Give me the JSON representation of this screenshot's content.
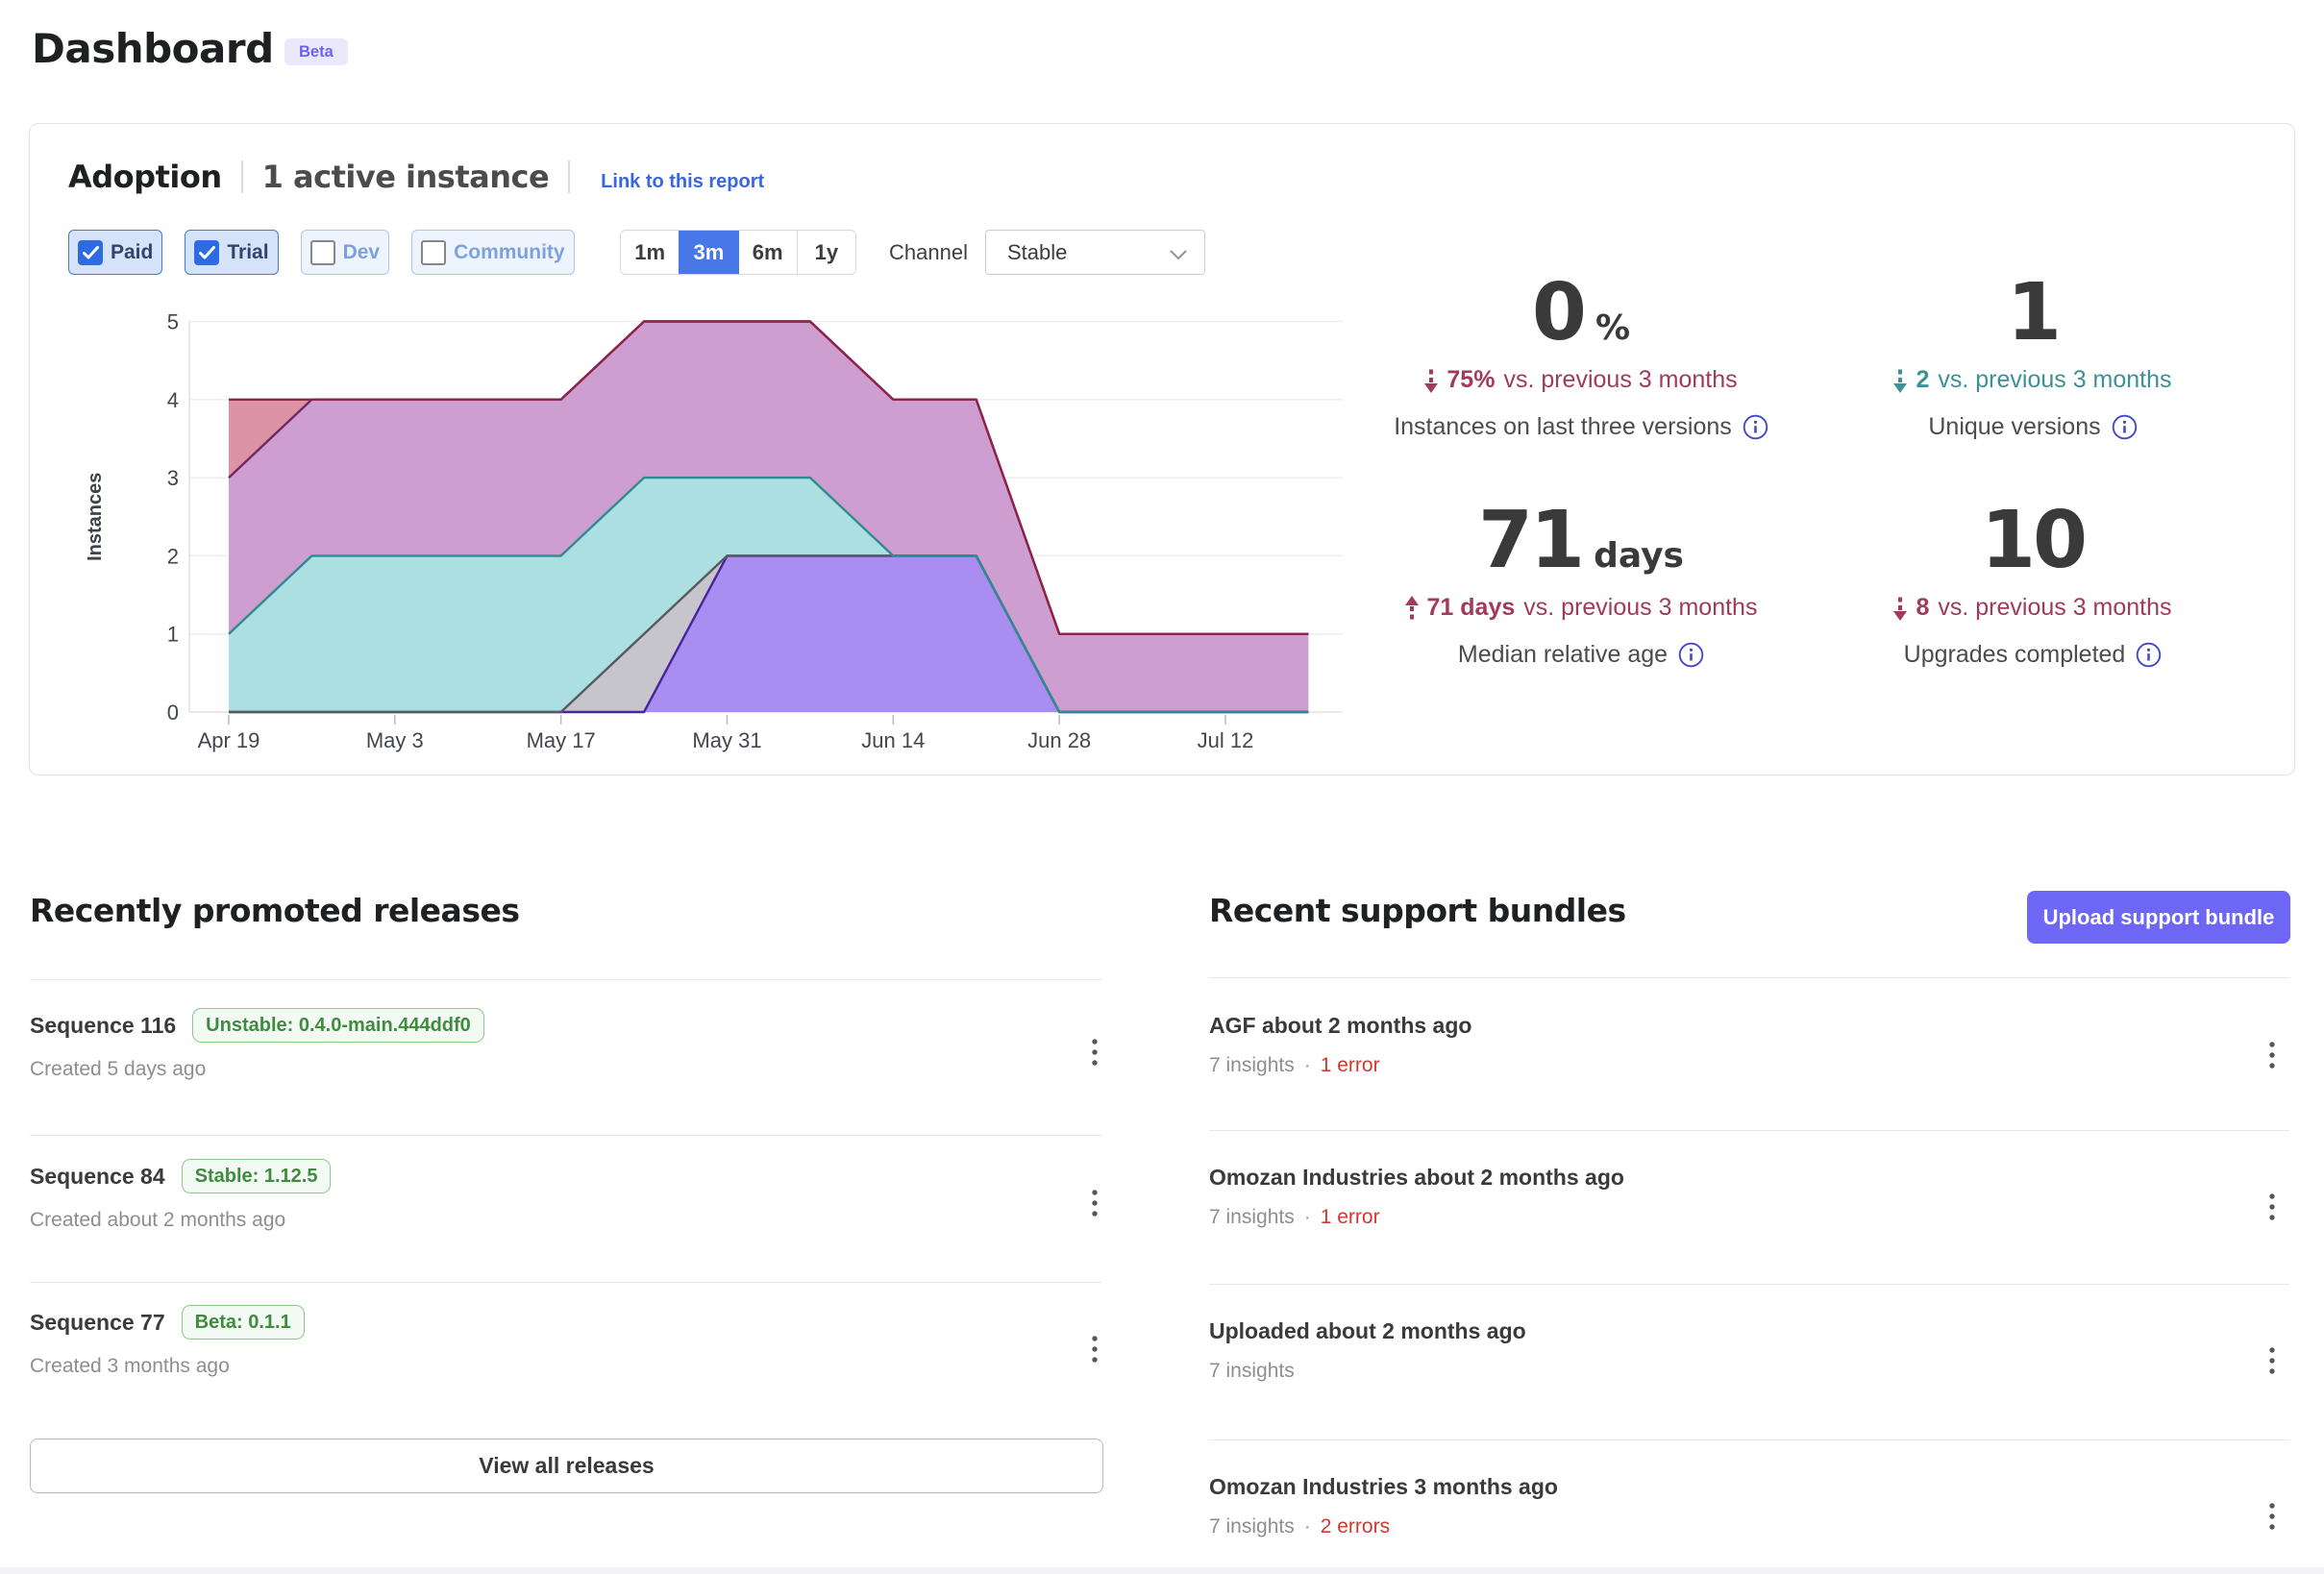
{
  "page": {
    "title": "Dashboard",
    "badge": "Beta"
  },
  "adoption": {
    "title": "Adoption",
    "active_instances": "1 active instance",
    "report_link": "Link to this report",
    "filters": [
      {
        "label": "Paid",
        "checked": true
      },
      {
        "label": "Trial",
        "checked": true
      },
      {
        "label": "Dev",
        "checked": false
      },
      {
        "label": "Community",
        "checked": false
      }
    ],
    "ranges": [
      {
        "label": "1m",
        "active": false
      },
      {
        "label": "3m",
        "active": true
      },
      {
        "label": "6m",
        "active": false
      },
      {
        "label": "1y",
        "active": false
      }
    ],
    "channel_label": "Channel",
    "channel_value": "Stable",
    "metrics": [
      {
        "value": "0",
        "unit": "%",
        "direction": "down",
        "delta_bold": "75%",
        "delta_rest": "vs. previous 3 months",
        "trend_color": "#a23a59",
        "label": "Instances on last three versions"
      },
      {
        "value": "1",
        "unit": "",
        "direction": "down",
        "delta_bold": "2",
        "delta_rest": "vs. previous 3 months",
        "trend_color": "#3b9295",
        "label": "Unique versions"
      },
      {
        "value": "71",
        "unit": "days",
        "direction": "up",
        "delta_bold": "71 days",
        "delta_rest": "vs. previous 3 months",
        "trend_color": "#a23a59",
        "label": "Median relative age"
      },
      {
        "value": "10",
        "unit": "",
        "direction": "down",
        "delta_bold": "8",
        "delta_rest": "vs. previous 3 months",
        "trend_color": "#a23a59",
        "label": "Upgrades completed"
      }
    ]
  },
  "chart_data": {
    "type": "area",
    "stacked": true,
    "title": "Adoption",
    "ylabel": "Instances",
    "ylim": [
      0,
      5
    ],
    "y_ticks": [
      0,
      1,
      2,
      3,
      4,
      5
    ],
    "grid": true,
    "legend_position": "none",
    "points": [
      "Apr 19",
      "Apr 26",
      "May 3",
      "May 10",
      "May 17",
      "May 24",
      "May 31",
      "Jun 7",
      "Jun 14",
      "Jun 21",
      "Jun 28",
      "Jul 5",
      "Jul 12",
      "Jul 19"
    ],
    "day_offsets": [
      0,
      7,
      14,
      21,
      28,
      35,
      42,
      49,
      56,
      63,
      70,
      77,
      84,
      91
    ],
    "x_ticks": [
      {
        "label": "Apr 19",
        "day": 0
      },
      {
        "label": "May 3",
        "day": 14
      },
      {
        "label": "May 17",
        "day": 28
      },
      {
        "label": "May 31",
        "day": 42
      },
      {
        "label": "Jun 14",
        "day": 56
      },
      {
        "label": "Jun 28",
        "day": 70
      },
      {
        "label": "Jul 12",
        "day": 84
      }
    ],
    "series": [
      {
        "name": "purple-version",
        "fill": "#a98df0",
        "stroke": "#47269b",
        "values": [
          0,
          0,
          0,
          0,
          0,
          0,
          2,
          2,
          2,
          2,
          0,
          0,
          0,
          0
        ]
      },
      {
        "name": "gray-version",
        "fill": "#c7c5cc",
        "stroke": "#595762",
        "values": [
          0,
          0,
          0,
          0,
          0,
          1,
          0,
          0,
          0,
          0,
          0,
          0,
          0,
          0
        ]
      },
      {
        "name": "teal-version",
        "fill": "#abdfe1",
        "stroke": "#2f8b91",
        "values": [
          1,
          2,
          2,
          2,
          2,
          2,
          1,
          1,
          0,
          0,
          0,
          0,
          0,
          0
        ]
      },
      {
        "name": "pink-version",
        "fill": "#cd9ecf",
        "stroke": "#6f2a66",
        "values": [
          2,
          2,
          2,
          2,
          2,
          2,
          2,
          2,
          2,
          2,
          1,
          1,
          1,
          1
        ]
      },
      {
        "name": "salmon-version",
        "fill": "#dc94a4",
        "stroke": "#8e2348",
        "values": [
          1,
          0,
          0,
          0,
          0,
          0,
          0,
          0,
          0,
          0,
          0,
          0,
          0,
          0
        ]
      }
    ]
  },
  "releases": {
    "title": "Recently promoted releases",
    "view_all": "View all releases",
    "items": [
      {
        "name": "Sequence 116",
        "badge": "Unstable: 0.4.0-main.444ddf0",
        "created": "Created 5 days ago"
      },
      {
        "name": "Sequence 84",
        "badge": "Stable: 1.12.5",
        "created": "Created about 2 months ago"
      },
      {
        "name": "Sequence 77",
        "badge": "Beta: 0.1.1",
        "created": "Created 3 months ago"
      }
    ]
  },
  "bundles": {
    "title": "Recent support bundles",
    "upload_button": "Upload support bundle",
    "items": [
      {
        "title": "AGF about 2 months ago",
        "insights": "7 insights",
        "errors": "1 error"
      },
      {
        "title": "Omozan Industries about 2 months ago",
        "insights": "7 insights",
        "errors": "1 error"
      },
      {
        "title": "Uploaded about 2 months ago",
        "insights": "7 insights",
        "errors": ""
      },
      {
        "title": "Omozan Industries 3 months ago",
        "insights": "7 insights",
        "errors": "2 errors"
      }
    ]
  },
  "colors": {
    "accent_indigo": "#6e66f4",
    "link_blue": "#3966e2",
    "active_range_blue": "#4878e8",
    "error_red": "#d23730",
    "trend_down_red": "#a23a59",
    "trend_teal": "#3b9295",
    "badge_green": "#3f8b3f"
  }
}
